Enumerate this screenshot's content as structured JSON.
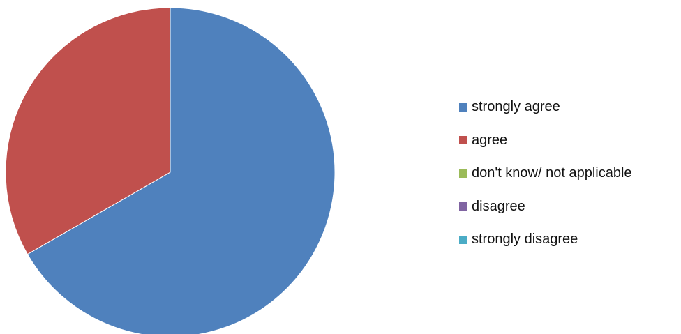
{
  "chart_data": {
    "type": "pie",
    "title": "",
    "start_angle_deg": 0,
    "direction": "clockwise",
    "legend_position": "right",
    "slices": [
      {
        "label": "strongly agree",
        "value": 66.7,
        "color": "#4F81BD"
      },
      {
        "label": "agree",
        "value": 33.3,
        "color": "#C0504D"
      },
      {
        "label": "don't know/ not applicable",
        "value": 0,
        "color": "#9BBB59"
      },
      {
        "label": "disagree",
        "value": 0,
        "color": "#8064A2"
      },
      {
        "label": "strongly disagree",
        "value": 0,
        "color": "#4BACC6"
      }
    ]
  }
}
